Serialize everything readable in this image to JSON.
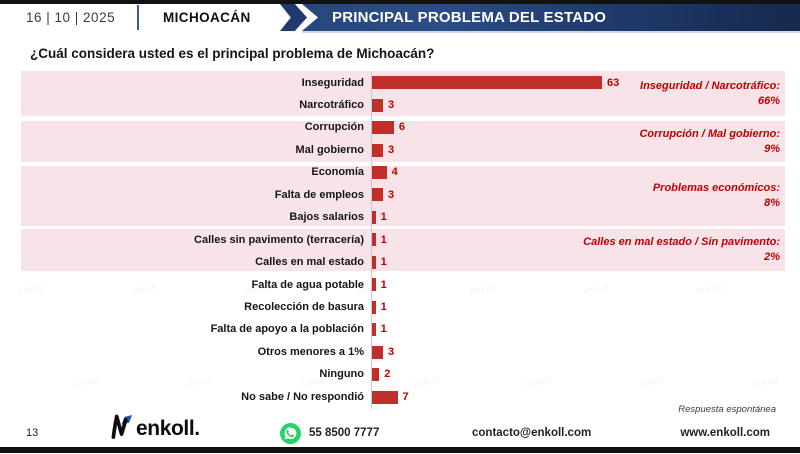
{
  "header": {
    "date": "16 | 10 | 2025",
    "region": "MICHOACÁN",
    "banner_title": "PRINCIPAL PROBLEMA DEL ESTADO"
  },
  "question": "¿Cuál considera usted es el principal problema de Michoacán?",
  "chart_data": {
    "type": "bar",
    "orientation": "horizontal",
    "title": "¿Cuál considera usted es el principal problema de Michoacán?",
    "categories": [
      "Inseguridad",
      "Narcotráfico",
      "Corrupción",
      "Mal gobierno",
      "Economía",
      "Falta de empleos",
      "Bajos salarios",
      "Calles sin pavimento (terracería)",
      "Calles en mal estado",
      "Falta de agua potable",
      "Recolección de basura",
      "Falta de apoyo a la población",
      "Otros menores a 1%",
      "Ninguno",
      "No sabe / No respondió"
    ],
    "values": [
      63,
      3,
      6,
      3,
      4,
      3,
      1,
      1,
      1,
      1,
      1,
      1,
      3,
      2,
      7
    ],
    "xlim": [
      0,
      63
    ],
    "grid": false,
    "legend": false,
    "groups": [
      {
        "label": "Inseguridad / Narcotráfico:",
        "pct": "66%",
        "rows": [
          0,
          1
        ]
      },
      {
        "label": "Corrupción / Mal gobierno:",
        "pct": "9%",
        "rows": [
          2,
          3
        ]
      },
      {
        "label": "Problemas económicos:",
        "pct": "8%",
        "rows": [
          4,
          5,
          6
        ]
      },
      {
        "label": "Calles en mal estado / Sin pavimento:",
        "pct": "2%",
        "rows": [
          7,
          8
        ]
      }
    ],
    "colors": {
      "bar": "#c0302b",
      "value_label": "#c00000",
      "annotation": "#c00000",
      "group_band": "#f8e4e8",
      "banner_navy": "#1e3a6e",
      "whatsapp_green": "#25d366"
    }
  },
  "watermark_text": "enkoll",
  "footnote": "Respuesta espontánea",
  "footer": {
    "page_number": "13",
    "logo_text": "enkoll.",
    "phone": "55 8500 7777",
    "email": "contacto@enkoll.com",
    "website": "www.enkoll.com"
  }
}
